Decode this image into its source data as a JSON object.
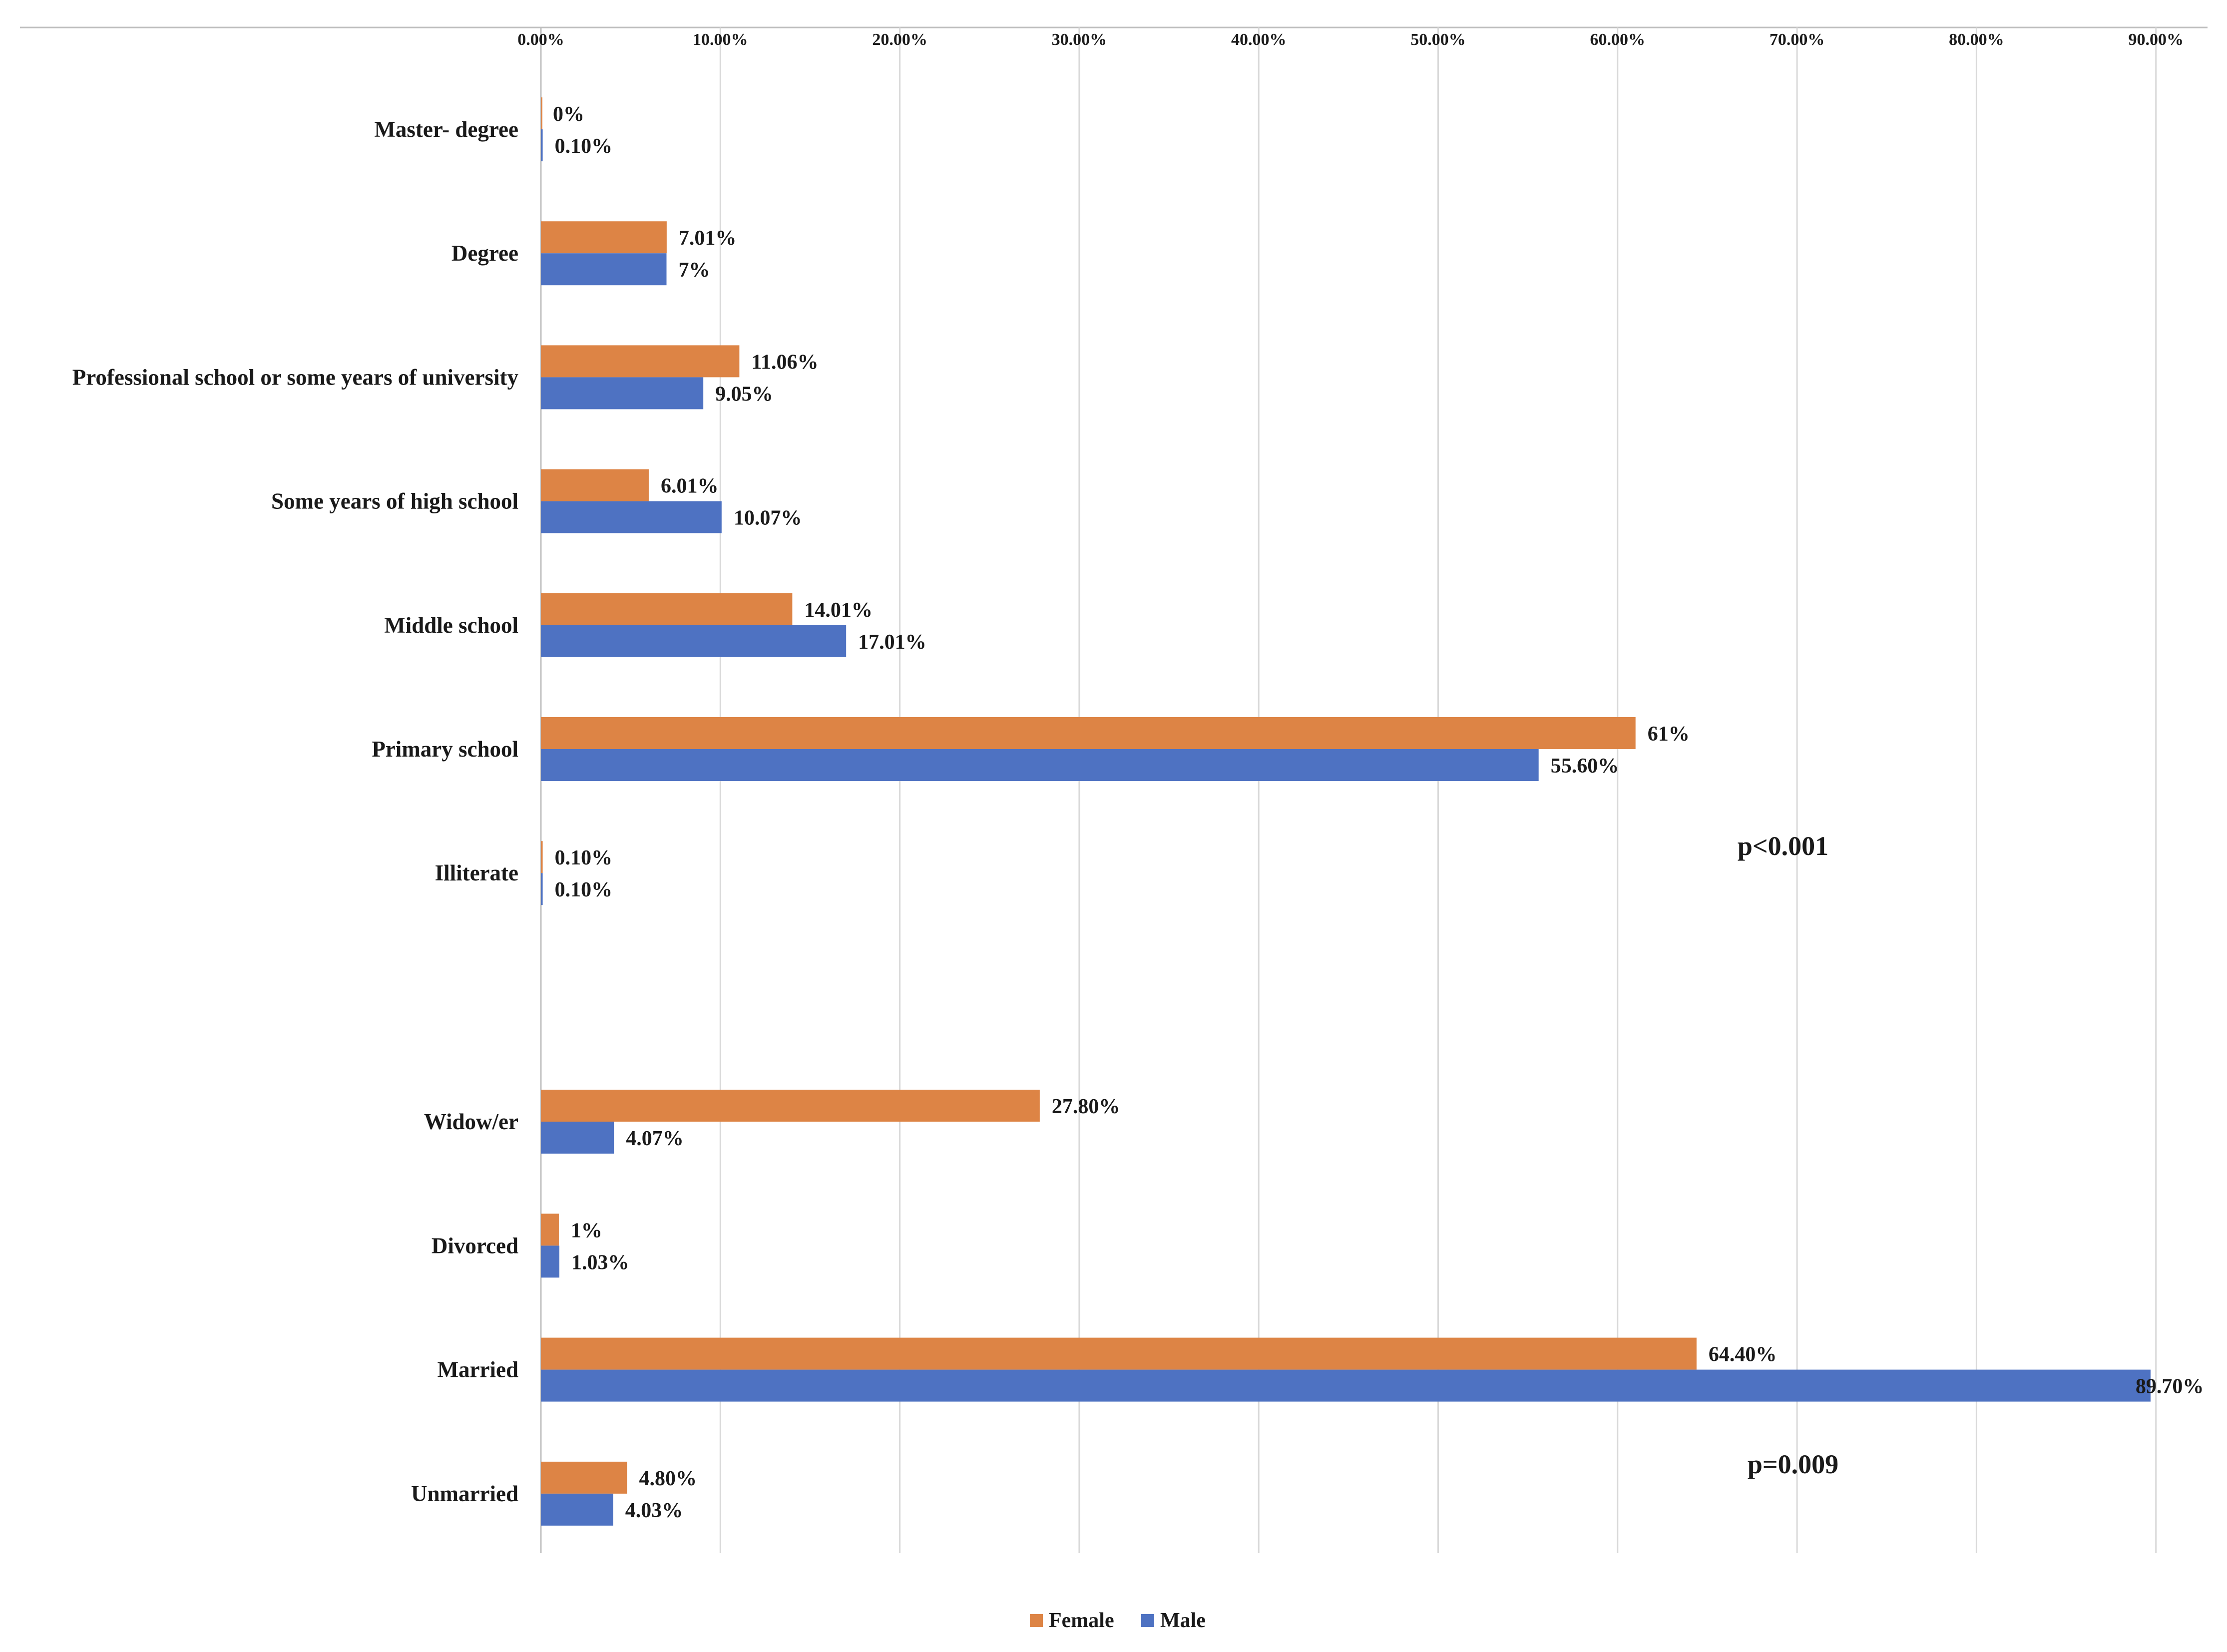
{
  "chart_data": {
    "type": "bar",
    "orientation": "horizontal",
    "title": "",
    "xlabel": "",
    "ylabel": "",
    "xlim": [
      0,
      90
    ],
    "x_tick_values": [
      0,
      10,
      20,
      30,
      40,
      50,
      60,
      70,
      80,
      90
    ],
    "x_tick_labels": [
      "0.00%",
      "10.00%",
      "20.00%",
      "30.00%",
      "40.00%",
      "50.00%",
      "60.00%",
      "70.00%",
      "80.00%",
      "90.00%"
    ],
    "x_axis_position": "top",
    "grid": true,
    "legend_position": "bottom",
    "groups": [
      {
        "annotation": "p<0.001",
        "categories": [
          "Master- degree",
          "Degree",
          "Professional school or some years of university",
          "Some years of high school",
          "Middle school",
          "Primary school",
          "Illiterate"
        ],
        "series": [
          {
            "name": "Female",
            "values": [
              0,
              7.01,
              11.06,
              6.01,
              14.01,
              61,
              0.1
            ],
            "labels": [
              "0%",
              "7.01%",
              "11.06%",
              "6.01%",
              "14.01%",
              "61%",
              "0.10%"
            ]
          },
          {
            "name": "Male",
            "values": [
              0.1,
              7,
              9.05,
              10.07,
              17.01,
              55.6,
              0.1
            ],
            "labels": [
              "0.10%",
              "7%",
              "9.05%",
              "10.07%",
              "17.01%",
              "55.60%",
              "0.10%"
            ]
          }
        ]
      },
      {
        "annotation": "p=0.009",
        "categories": [
          "Widow/er",
          "Divorced",
          "Married",
          "Unmarried"
        ],
        "series": [
          {
            "name": "Female",
            "values": [
              27.8,
              1,
              64.4,
              4.8
            ],
            "labels": [
              "27.80%",
              "1%",
              "64.40%",
              "4.80%"
            ]
          },
          {
            "name": "Male",
            "values": [
              4.07,
              1.03,
              89.7,
              4.03
            ],
            "labels": [
              "4.07%",
              "1.03%",
              "89.70%",
              "4.03%"
            ]
          }
        ]
      }
    ],
    "legend": [
      "Female",
      "Male"
    ],
    "colors": {
      "Female": "#DD8445",
      "Male": "#4E72C2",
      "grid": "#d9d9d9",
      "axis": "#bfbfbf"
    }
  }
}
